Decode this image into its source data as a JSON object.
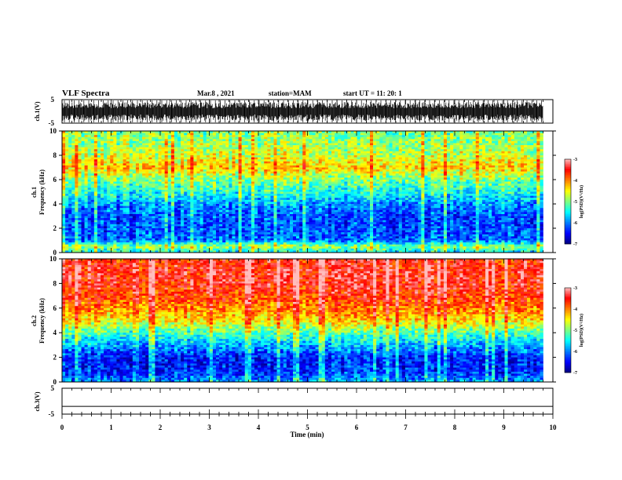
{
  "header": {
    "title": "VLF Spectra",
    "date": "Mar.8 , 2021",
    "station": "station=MAM",
    "start_ut": "start UT =  11: 20: 1"
  },
  "colors": {
    "colormap": [
      "#00007f",
      "#0000ff",
      "#007fff",
      "#00ffff",
      "#7fff7f",
      "#ffff00",
      "#ff7f00",
      "#ff0000",
      "#ffbfbf"
    ],
    "axis": "#000000",
    "background": "#ffffff"
  },
  "chart_data": [
    {
      "type": "line",
      "panel": "ch1-waveform",
      "ylabel": "ch.1(V)",
      "ylim": [
        -5,
        5
      ],
      "yticks": [
        "5",
        "-5"
      ],
      "xlim": [
        0,
        10
      ],
      "description_level": "dense oscillating waveform spanning roughly -5 to 5 V with periodic spikes"
    },
    {
      "type": "heatmap",
      "panel": "ch1-spectrogram",
      "ylabel": "ch.1\nFrequency (kHz)",
      "ylabel_lines": [
        "ch.1",
        "Frequency (kHz)"
      ],
      "ylim": [
        0,
        10
      ],
      "yticks": [
        "0",
        "2",
        "4",
        "6",
        "8",
        "10"
      ],
      "xlim": [
        0,
        9.8
      ],
      "colorbar": {
        "label": "log(PSD)(V²/Hz)",
        "range": [
          -7,
          -3
        ],
        "ticks": [
          "-3",
          "-4",
          "-5",
          "-6",
          "-7"
        ]
      },
      "profile_log_psd": [
        [
          0.0,
          -5.6
        ],
        [
          0.5,
          -4.8
        ],
        [
          1.0,
          -6.1
        ],
        [
          2.0,
          -6.2
        ],
        [
          3.0,
          -6.2
        ],
        [
          4.0,
          -5.9
        ],
        [
          5.0,
          -5.4
        ],
        [
          6.0,
          -5.0
        ],
        [
          7.0,
          -4.3
        ],
        [
          8.0,
          -4.7
        ],
        [
          9.0,
          -4.9
        ],
        [
          10.0,
          -5.0
        ]
      ]
    },
    {
      "type": "heatmap",
      "panel": "ch2-spectrogram",
      "ylabel": "ch.2\nFrequency (kHz)",
      "ylabel_lines": [
        "ch.2",
        "Frequency (kHz)"
      ],
      "ylim": [
        0,
        10
      ],
      "yticks": [
        "0",
        "2",
        "4",
        "6",
        "8",
        "10"
      ],
      "xlim": [
        0,
        9.8
      ],
      "colorbar": {
        "label": "log(PSD)(V²/Hz)",
        "range": [
          -7,
          -3
        ],
        "ticks": [
          "-3",
          "-4",
          "-5",
          "-6",
          "-7"
        ]
      },
      "profile_log_psd": [
        [
          0.0,
          -5.8
        ],
        [
          0.5,
          -6.2
        ],
        [
          1.0,
          -6.4
        ],
        [
          2.0,
          -6.4
        ],
        [
          3.0,
          -5.8
        ],
        [
          4.0,
          -5.2
        ],
        [
          5.0,
          -4.4
        ],
        [
          6.0,
          -4.0
        ],
        [
          7.0,
          -3.7
        ],
        [
          8.0,
          -3.5
        ],
        [
          9.0,
          -3.5
        ],
        [
          10.0,
          -3.6
        ]
      ]
    },
    {
      "type": "line",
      "panel": "ch3-waveform",
      "ylabel": "ch.3(V)",
      "ylim": [
        -5,
        5
      ],
      "yticks": [
        "5",
        "-5"
      ],
      "xlim": [
        0,
        10
      ],
      "constant_value": -2
    }
  ],
  "xaxis": {
    "label": "Time (min)",
    "ticks": [
      "0",
      "1",
      "2",
      "3",
      "4",
      "5",
      "6",
      "7",
      "8",
      "9",
      "10"
    ],
    "range": [
      0,
      10
    ]
  }
}
